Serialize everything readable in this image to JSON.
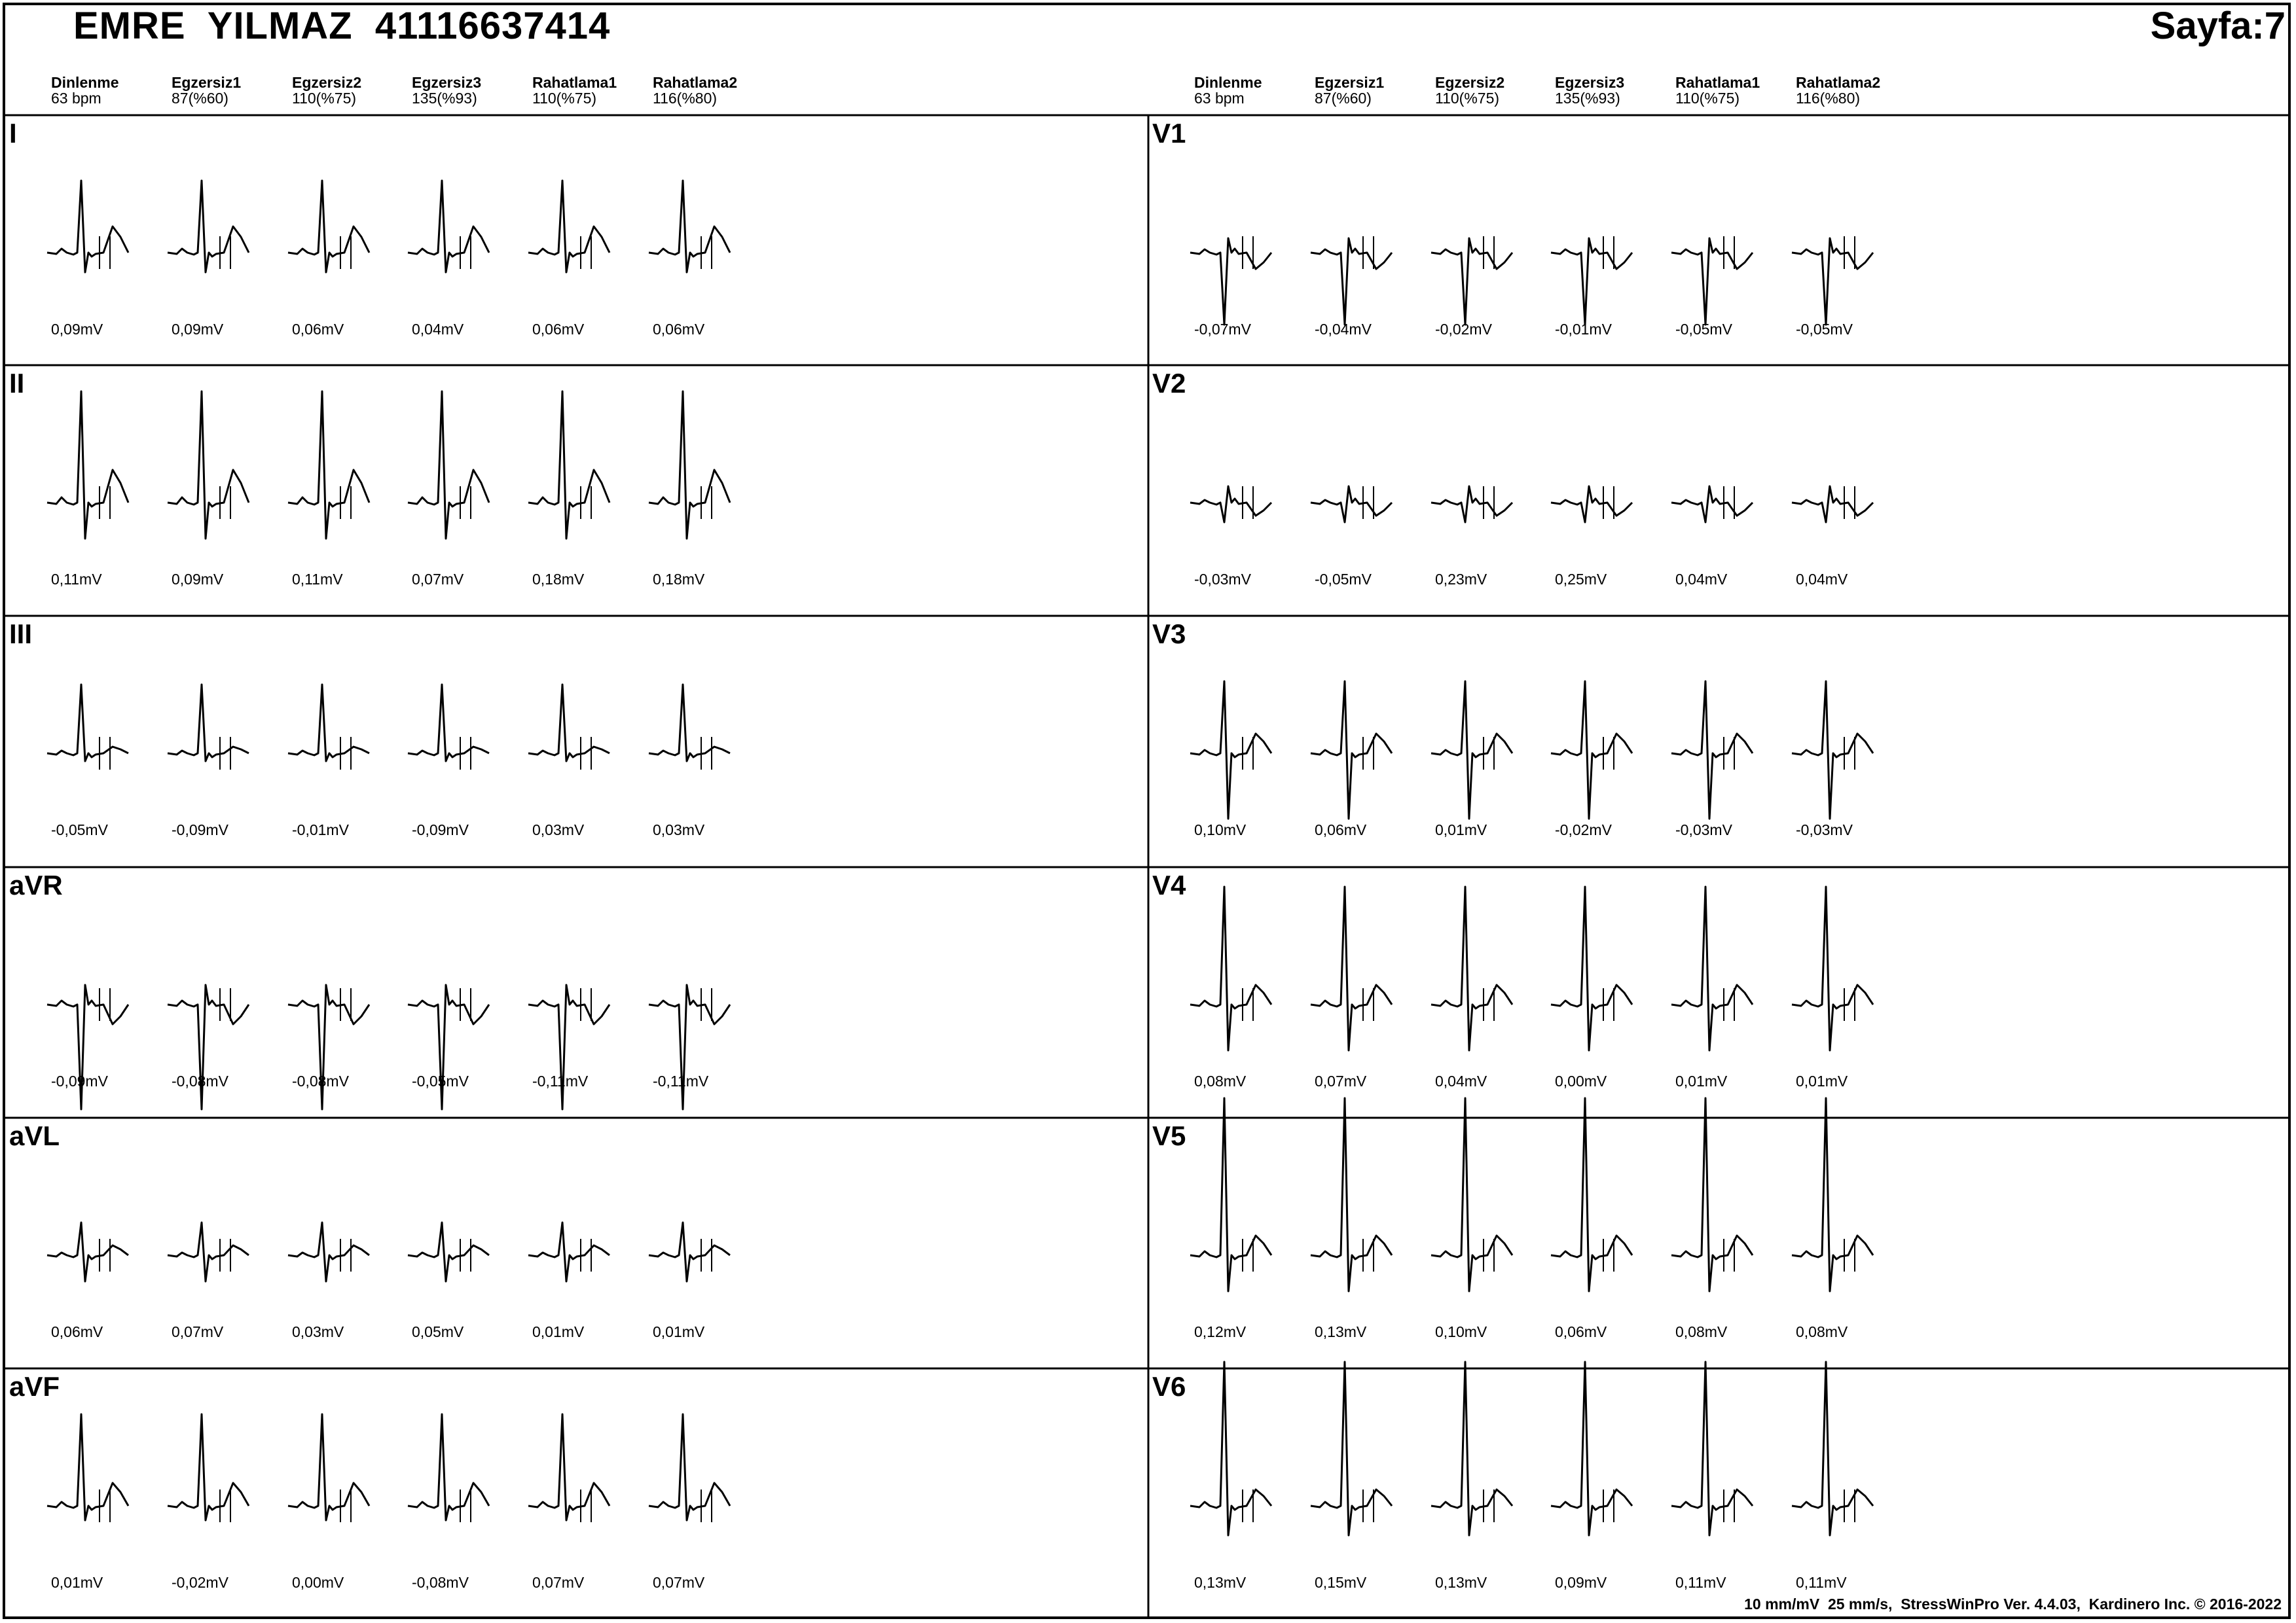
{
  "header": {
    "patient_name": "EMRE  YILMAZ",
    "patient_id": "41116637414",
    "page": "Sayfa:7"
  },
  "stages": [
    {
      "name": "Dinlenme",
      "value": "63 bpm"
    },
    {
      "name": "Egzersiz1",
      "value": "87(%60)"
    },
    {
      "name": "Egzersiz2",
      "value": "110(%75)"
    },
    {
      "name": "Egzersiz3",
      "value": "135(%93)"
    },
    {
      "name": "Rahatlama1",
      "value": "110(%75)"
    },
    {
      "name": "Rahatlama2",
      "value": "116(%80)"
    }
  ],
  "leads": [
    {
      "name": "I",
      "amps": [
        "0,09mV",
        "0,09mV",
        "0,06mV",
        "0,04mV",
        "0,06mV",
        "0,06mV"
      ]
    },
    {
      "name": "II",
      "amps": [
        "0,11mV",
        "0,09mV",
        "0,11mV",
        "0,07mV",
        "0,18mV",
        "0,18mV"
      ]
    },
    {
      "name": "III",
      "amps": [
        "-0,05mV",
        "-0,09mV",
        "-0,01mV",
        "-0,09mV",
        "0,03mV",
        "0,03mV"
      ]
    },
    {
      "name": "aVR",
      "amps": [
        "-0,09mV",
        "-0,08mV",
        "-0,08mV",
        "-0,05mV",
        "-0,11mV",
        "-0,11mV"
      ]
    },
    {
      "name": "aVL",
      "amps": [
        "0,06mV",
        "0,07mV",
        "0,03mV",
        "0,05mV",
        "0,01mV",
        "0,01mV"
      ]
    },
    {
      "name": "aVF",
      "amps": [
        "0,01mV",
        "-0,02mV",
        "0,00mV",
        "-0,08mV",
        "0,07mV",
        "0,07mV"
      ]
    },
    {
      "name": "V1",
      "amps": [
        "-0,07mV",
        "-0,04mV",
        "-0,02mV",
        "-0,01mV",
        "-0,05mV",
        "-0,05mV"
      ]
    },
    {
      "name": "V2",
      "amps": [
        "-0,03mV",
        "-0,05mV",
        "0,23mV",
        "0,25mV",
        "0,04mV",
        "0,04mV"
      ]
    },
    {
      "name": "V3",
      "amps": [
        "0,10mV",
        "0,06mV",
        "0,01mV",
        "-0,02mV",
        "-0,03mV",
        "-0,03mV"
      ]
    },
    {
      "name": "V4",
      "amps": [
        "0,08mV",
        "0,07mV",
        "0,04mV",
        "0,00mV",
        "0,01mV",
        "0,01mV"
      ]
    },
    {
      "name": "V5",
      "amps": [
        "0,12mV",
        "0,13mV",
        "0,10mV",
        "0,06mV",
        "0,08mV",
        "0,08mV"
      ]
    },
    {
      "name": "V6",
      "amps": [
        "0,13mV",
        "0,15mV",
        "0,13mV",
        "0,09mV",
        "0,11mV",
        "0,11mV"
      ]
    }
  ],
  "footer": {
    "calibration": "10 mm/mV  25 mm/s,",
    "software": "StressWinPro Ver. 4.4.03,  Kardinero Inc. © 2016-2022"
  }
}
